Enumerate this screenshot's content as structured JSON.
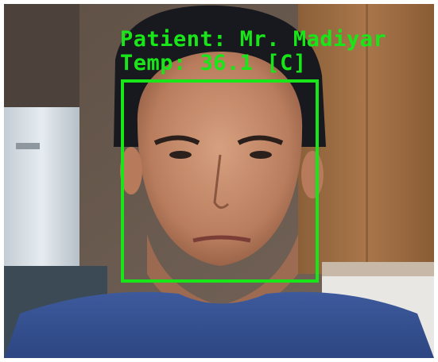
{
  "overlay": {
    "patient_label": "Patient: Mr. Madiyar",
    "temp_label": "Temp: 36.1 [C]",
    "color": "#19e619"
  }
}
